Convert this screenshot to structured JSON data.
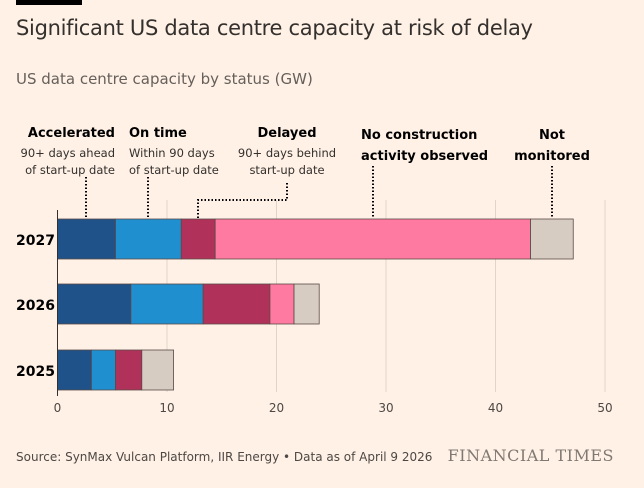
{
  "title": "Significant US data centre capacity at risk of delay",
  "subtitle": "US data centre capacity by status (GW)",
  "source": "Source: SynMax Vulcan Platform, IIR Energy • Data as of April 9 2026",
  "logo": "FINANCIAL TIMES",
  "chart_data": {
    "type": "bar",
    "orientation": "horizontal",
    "stacked": true,
    "categories": [
      "2027",
      "2026",
      "2025"
    ],
    "series": [
      {
        "name": "Accelerated",
        "description": [
          "90+ days ahead",
          "of start-up date"
        ],
        "color": "#1f5289",
        "values": [
          5.3,
          6.7,
          3.1
        ]
      },
      {
        "name": "On time",
        "description": [
          "Within 90 days",
          "of start-up date"
        ],
        "color": "#1f8fcf",
        "values": [
          6.0,
          6.6,
          2.2
        ]
      },
      {
        "name": "Delayed",
        "description": [
          "90+ days behind",
          "start-up date"
        ],
        "color": "#b0325a",
        "values": [
          3.1,
          6.1,
          2.4
        ]
      },
      {
        "name": "No construction activity observed",
        "description": [],
        "color": "#ff7aa0",
        "values": [
          28.8,
          2.2,
          0
        ]
      },
      {
        "name": "Not monitored",
        "description": [],
        "color": "#d6ccc2",
        "values": [
          3.9,
          2.3,
          2.9
        ]
      }
    ],
    "xlim": [
      0,
      50
    ],
    "xticks": [
      "0",
      "10",
      "20",
      "30",
      "40",
      "50"
    ],
    "grid": true,
    "legend": "top, annotated with dotted leader lines"
  }
}
